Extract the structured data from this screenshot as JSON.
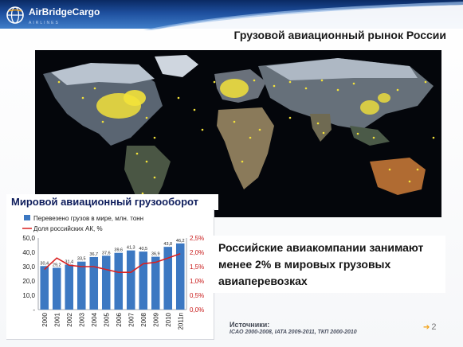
{
  "brand": {
    "name": "AirBridgeCargo",
    "tagline": "AIRLINES",
    "accent": "#1e4f9e"
  },
  "slide": {
    "title": "Грузовой авиационный рынок России",
    "claim": "Российские авиакомпании занимают менее 2% в мировых грузовых авиаперевозках",
    "sources_label": "Источники:",
    "sources_detail": "ICAO 2000-2008,  IATA 2009-2011,  ТКП 2000-2010",
    "page_number": "2"
  },
  "chart_data": {
    "type": "bar",
    "title": "Мировой авиационный грузооборот",
    "categories": [
      "2000",
      "2001",
      "2002",
      "2003",
      "2004",
      "2005",
      "2006",
      "2007",
      "2008",
      "2009",
      "2010",
      "2011п"
    ],
    "series": [
      {
        "name": "Перевезено грузов в мире, млн. тонн",
        "type": "bar",
        "color": "#3c78c2",
        "values": [
          30.4,
          29.2,
          31.4,
          33.5,
          36.7,
          37.6,
          39.6,
          41.3,
          40.5,
          36.9,
          43.8,
          46.2
        ],
        "labels": [
          "30,4",
          "29,2",
          "31,4",
          "33,5",
          "36,7",
          "37,6",
          "39,6",
          "41,3",
          "40,5",
          "36,9",
          "43,8",
          "46,2"
        ]
      },
      {
        "name": "Доля российских АК, %",
        "type": "line",
        "color": "#d82020",
        "axis": "right",
        "values": [
          1.4,
          1.8,
          1.55,
          1.5,
          1.5,
          1.4,
          1.3,
          1.3,
          1.6,
          1.65,
          1.8,
          1.95
        ]
      }
    ],
    "y_left": {
      "ticks": [
        "50,0",
        "40,0",
        "30,0",
        "20,0",
        "10,0",
        "-"
      ],
      "ylim": [
        0,
        50
      ]
    },
    "y_right": {
      "ticks": [
        "2,5%",
        "2,0%",
        "1,5%",
        "1,0%",
        "0,5%",
        "0,0%"
      ],
      "ylim": [
        0,
        2.5
      ]
    },
    "legend_position": "top-left",
    "grid": false
  }
}
